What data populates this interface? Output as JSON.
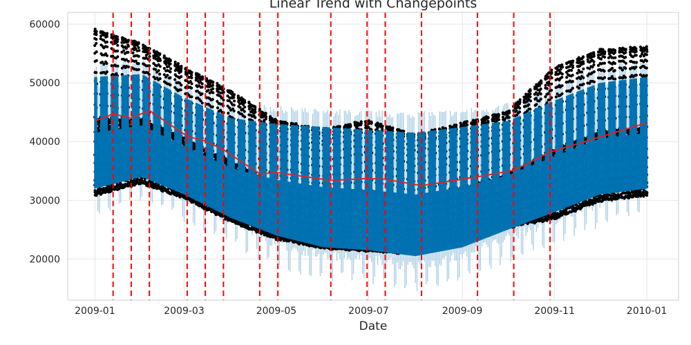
{
  "chart_data": {
    "type": "line",
    "title": "Linear Trend with Changepoints",
    "xlabel": "Date",
    "ylabel": "",
    "x_range": [
      "2008-12-14",
      "2010-01-22"
    ],
    "ylim": [
      13000,
      62000
    ],
    "grid": true,
    "x_ticks": [
      "2009-01",
      "2009-03",
      "2009-05",
      "2009-07",
      "2009-09",
      "2009-11",
      "2010-01"
    ],
    "y_ticks": [
      20000,
      30000,
      40000,
      50000,
      60000
    ],
    "trend": {
      "name": "trend",
      "color": "#d62728",
      "x": [
        "2009-01-01",
        "2009-01-13",
        "2009-01-25",
        "2009-02-06",
        "2009-03-03",
        "2009-03-15",
        "2009-03-27",
        "2009-04-20",
        "2009-05-02",
        "2009-06-06",
        "2009-06-30",
        "2009-07-12",
        "2009-08-05",
        "2009-09-11",
        "2009-10-05",
        "2009-10-29",
        "2010-01-01"
      ],
      "y": [
        43500,
        44700,
        44000,
        45300,
        40900,
        40100,
        38600,
        34500,
        34700,
        33400,
        33700,
        33600,
        32500,
        34000,
        35100,
        38200,
        43200
      ]
    },
    "changepoints": {
      "color": "#ff0000",
      "style": "dashed",
      "dates": [
        "2009-01-13",
        "2009-01-25",
        "2009-02-06",
        "2009-03-03",
        "2009-03-15",
        "2009-03-27",
        "2009-04-20",
        "2009-05-02",
        "2009-06-06",
        "2009-06-30",
        "2009-07-12",
        "2009-08-05",
        "2009-09-11",
        "2009-10-05",
        "2009-10-29"
      ]
    },
    "forecast_band": {
      "color": "#a6cbe3",
      "x": [
        "2009-01-01",
        "2009-02-01",
        "2009-03-01",
        "2009-04-01",
        "2009-05-01",
        "2009-06-01",
        "2009-07-01",
        "2009-08-01",
        "2009-09-01",
        "2009-10-01",
        "2009-11-01",
        "2009-12-01",
        "2010-01-01"
      ],
      "upper": [
        53000,
        53500,
        49500,
        46000,
        45500,
        45000,
        44800,
        44500,
        45000,
        46000,
        49500,
        52500,
        53500
      ],
      "lower": [
        29000,
        31000,
        28000,
        24000,
        20000,
        18000,
        17500,
        16000,
        18000,
        21000,
        24000,
        27000,
        29000
      ]
    },
    "forecast": {
      "name": "yhat",
      "color": "#0072B2",
      "x": [
        "2009-01-01",
        "2009-02-01",
        "2009-03-01",
        "2009-04-01",
        "2009-05-01",
        "2009-06-01",
        "2009-07-01",
        "2009-08-01",
        "2009-09-01",
        "2009-10-01",
        "2009-11-01",
        "2009-12-01",
        "2010-01-01"
      ],
      "upper": [
        51000,
        51500,
        47500,
        44000,
        43000,
        42500,
        42000,
        41500,
        42500,
        43500,
        47000,
        50000,
        51000
      ],
      "lower": [
        32000,
        34000,
        31000,
        27000,
        24000,
        22000,
        21500,
        20500,
        22000,
        25000,
        28000,
        31000,
        32000
      ]
    },
    "observed": {
      "name": "y",
      "color": "#000000",
      "x": [
        "2009-01-01",
        "2009-02-01",
        "2009-03-01",
        "2009-04-01",
        "2009-05-01",
        "2009-06-01",
        "2009-07-01",
        "2009-08-01",
        "2009-09-01",
        "2009-10-01",
        "2009-11-01",
        "2009-12-01",
        "2010-01-01"
      ],
      "upper": [
        59000,
        56500,
        52500,
        48500,
        43500,
        42000,
        43500,
        41000,
        43000,
        45000,
        52500,
        55500,
        56000
      ],
      "lower": [
        31000,
        33000,
        30500,
        26500,
        23500,
        22000,
        21500,
        21000,
        23000,
        25500,
        27000,
        30000,
        31000
      ]
    }
  }
}
